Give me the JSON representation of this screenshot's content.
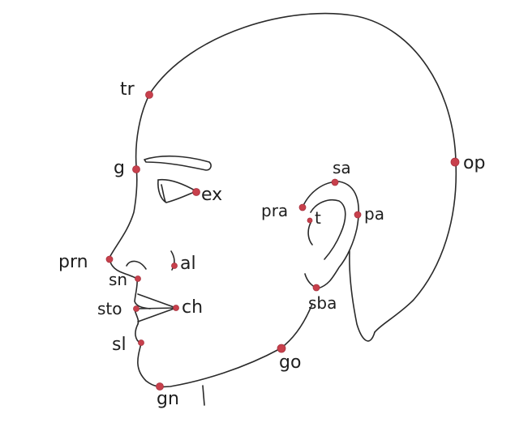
{
  "colors": {
    "landmark": "#c8404c",
    "ink": "#2a2a2a",
    "background": "#ffffff"
  },
  "landmarks": {
    "tr": "tr",
    "g": "g",
    "ex": "ex",
    "prn": "prn",
    "al": "al",
    "sn": "sn",
    "sto": "sto",
    "ch": "ch",
    "sl": "sl",
    "gn": "gn",
    "go": "go",
    "sa": "sa",
    "pra": "pra",
    "t": "t",
    "pa": "pa",
    "sba": "sba",
    "op": "op"
  }
}
